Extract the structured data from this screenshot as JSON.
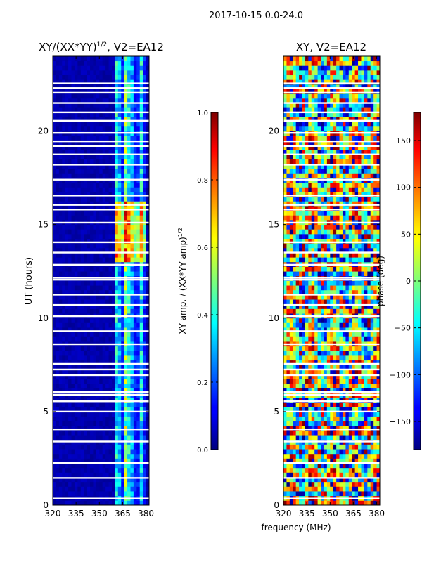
{
  "figure": {
    "suptitle": "2017-10-15 0.0-24.0",
    "shared_xlabel": "frequency (MHz)"
  },
  "chart_data": [
    {
      "type": "heatmap",
      "title": "XY/(XX*YY)",
      "title_sup": "1/2",
      "title_suffix": ", V2=EA12",
      "xlabel": "",
      "ylabel": "UT (hours)",
      "xlim": [
        320,
        382
      ],
      "ylim": [
        0,
        24
      ],
      "xticks": [
        "320",
        "335",
        "350",
        "365",
        "380"
      ],
      "xtick_values": [
        320,
        335,
        350,
        365,
        380
      ],
      "yticks": [
        "0",
        "5",
        "10",
        "15",
        "20"
      ],
      "ytick_values": [
        0,
        5,
        10,
        15,
        20
      ],
      "colormap": "jet",
      "description": "Normalized XY amplitude; near 0 for 320-360 MHz, elevated 0.4-0.9 in bands 360-380 MHz, strongest around 13-16 UT",
      "high_band_mhz": [
        360,
        380
      ],
      "peak_window_ut": [
        13.0,
        16.3
      ],
      "colorbar": {
        "label": "XY amp. / (XX*YY amp)",
        "label_sup": "1/2",
        "range": [
          0.0,
          1.0
        ],
        "ticks": [
          "0.0",
          "0.2",
          "0.4",
          "0.6",
          "0.8",
          "1.0"
        ],
        "tick_values": [
          0.0,
          0.2,
          0.4,
          0.6,
          0.8,
          1.0
        ]
      }
    },
    {
      "type": "heatmap",
      "title": "XY, V2=EA12",
      "xlabel": "frequency (MHz)",
      "ylabel": "",
      "xlim": [
        320,
        382
      ],
      "ylim": [
        0,
        24
      ],
      "xticks": [
        "320",
        "335",
        "350",
        "365",
        "380"
      ],
      "xtick_values": [
        320,
        335,
        350,
        365,
        380
      ],
      "yticks": [
        "0",
        "5",
        "10",
        "15",
        "20"
      ],
      "ytick_values": [
        0,
        5,
        10,
        15,
        20
      ],
      "colormap": "jet",
      "description": "XY phase in degrees, noisy structure across all frequencies and times",
      "colorbar": {
        "label": "phase (deg)",
        "range": [
          -180,
          180
        ],
        "ticks": [
          "−150",
          "−100",
          "−50",
          "0",
          "50",
          "100",
          "150"
        ],
        "tick_values": [
          -150,
          -100,
          -50,
          0,
          50,
          100,
          150
        ]
      }
    }
  ],
  "flagged_rows_ut": [
    0.35,
    1.45,
    2.25,
    3.4,
    4.05,
    5.0,
    5.55,
    5.9,
    6.05,
    6.95,
    7.25,
    7.55,
    8.6,
    9.3,
    10.1,
    10.7,
    11.25,
    12.05,
    12.15,
    12.85,
    13.5,
    14.05,
    15.1,
    15.8,
    16.05,
    16.55,
    17.4,
    18.2,
    18.75,
    19.2,
    19.45,
    19.9,
    20.55,
    21.0,
    21.5,
    22.05,
    22.3,
    22.55
  ]
}
